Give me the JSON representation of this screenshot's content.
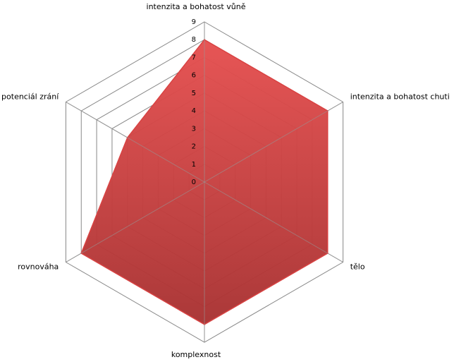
{
  "chart_data": {
    "type": "radar",
    "categories": [
      "intenzita a bohatost  vůně",
      "intenzita a bohatost  chuti",
      "tělo",
      "komplexnost",
      "rovnováha",
      "potenciál zrání"
    ],
    "values": [
      8,
      8,
      8,
      8,
      8,
      5
    ],
    "color": "#d94343",
    "ylim": [
      0,
      9
    ],
    "yticks": [
      0,
      1,
      2,
      3,
      4,
      5,
      6,
      7,
      8,
      9
    ],
    "grid": true
  }
}
